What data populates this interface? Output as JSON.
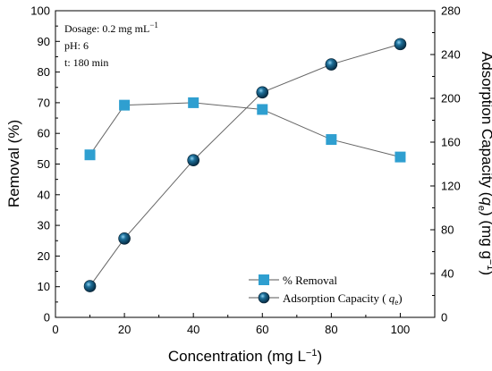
{
  "chart_data": {
    "type": "line",
    "x": [
      10,
      20,
      40,
      60,
      80,
      100
    ],
    "xlabel_main": "Concentration (mg L",
    "xlabel_sup": "−1",
    "xlabel_end": ")",
    "xlim": [
      0,
      110
    ],
    "xticks": [
      0,
      20,
      40,
      60,
      80,
      100
    ],
    "ylabel_left": "Removal (%)",
    "ylim_left": [
      0,
      100
    ],
    "yticks_left": [
      0,
      10,
      20,
      30,
      40,
      50,
      60,
      70,
      80,
      90,
      100
    ],
    "ylabel_right_main": "Adsorption Capacity (",
    "ylabel_right_q": "q",
    "ylabel_right_sub": "e",
    "ylabel_right_end": ") (mg g",
    "ylabel_right_sup": "−1",
    "ylabel_right_close": ")",
    "ylim_right": [
      0,
      280
    ],
    "yticks_right": [
      0,
      40,
      80,
      120,
      160,
      200,
      240,
      280
    ],
    "series": [
      {
        "name": "% Removal",
        "axis": "left",
        "marker": "square",
        "color": "#2f9fd0",
        "values": [
          53,
          69.2,
          70,
          67.8,
          58,
          52.3
        ]
      },
      {
        "name_main": "Adsorption Capacity ( ",
        "name_q": "q",
        "name_sub": "e",
        "name_close": ")",
        "axis": "right",
        "marker": "sphere",
        "color": "#0e4a6b",
        "values": [
          28.5,
          72,
          143.5,
          205.5,
          231,
          249.5
        ]
      }
    ],
    "annotations": {
      "dosage_main": "Dosage: 0.2 mg mL",
      "dosage_sup": "−1",
      "ph": "pH: 6",
      "time": "t: 180 min"
    },
    "legend_position": "bottom-right",
    "grid": false
  }
}
